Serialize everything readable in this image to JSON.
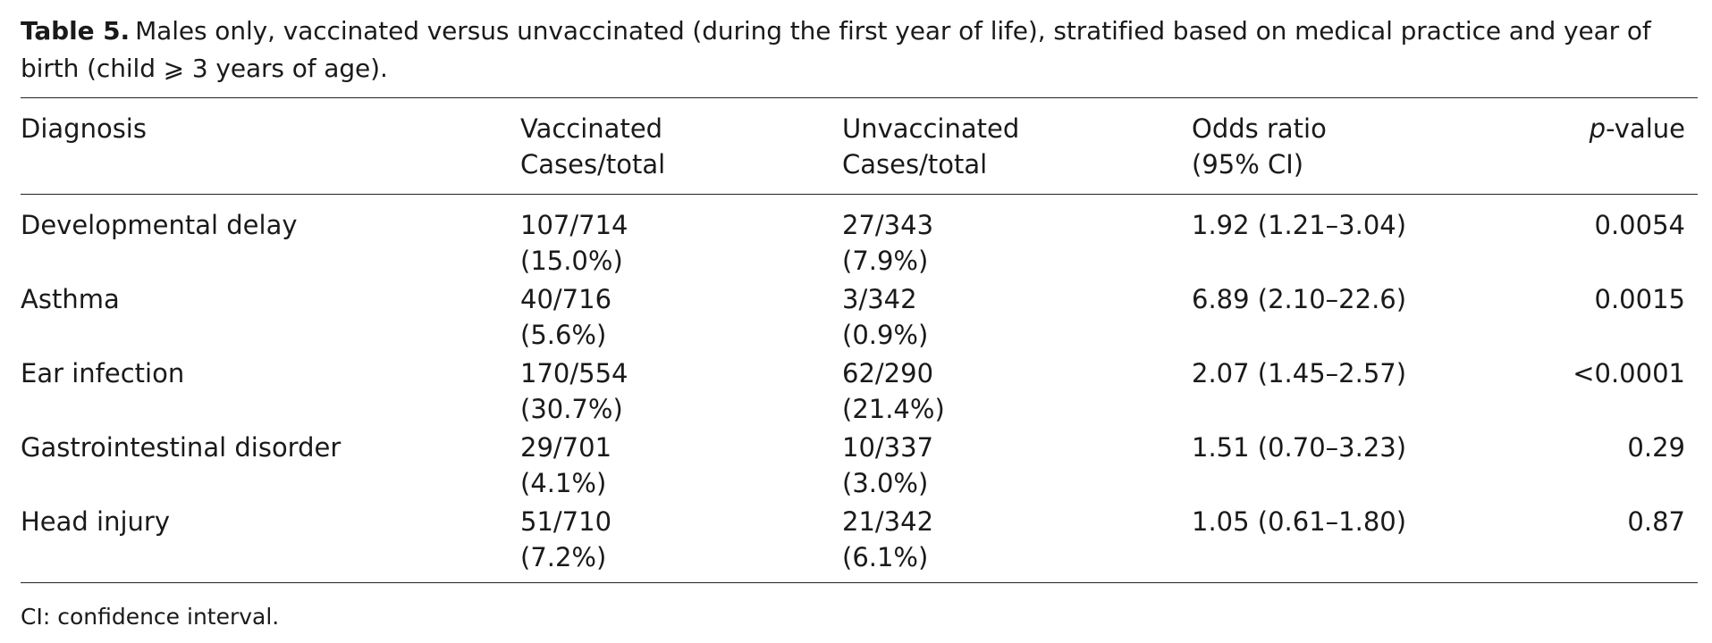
{
  "caption": {
    "label": "Table 5.",
    "text": "Males only, vaccinated versus unvaccinated (during the first year of life), stratified based on medical practice and year of birth (child ⩾ 3 years of age)."
  },
  "headers": {
    "diagnosis": "Diagnosis",
    "vaccinated_l1": "Vaccinated",
    "vaccinated_l2": "Cases/total",
    "unvaccinated_l1": "Unvaccinated",
    "unvaccinated_l2": "Cases/total",
    "odds_l1": "Odds ratio",
    "odds_l2": "(95% CI)",
    "p_italic": "p",
    "p_rest": "-value"
  },
  "rows": [
    {
      "diagnosis": "Developmental delay",
      "vacc": "107/714",
      "vacc_pct": "(15.0%)",
      "unvacc": "27/343",
      "unvacc_pct": "(7.9%)",
      "or": "1.92 (1.21–3.04)",
      "p": "0.0054"
    },
    {
      "diagnosis": "Asthma",
      "vacc": "40/716",
      "vacc_pct": "(5.6%)",
      "unvacc": "3/342",
      "unvacc_pct": "(0.9%)",
      "or": "6.89 (2.10–22.6)",
      "p": "0.0015"
    },
    {
      "diagnosis": "Ear infection",
      "vacc": "170/554",
      "vacc_pct": "(30.7%)",
      "unvacc": "62/290",
      "unvacc_pct": "(21.4%)",
      "or": "2.07 (1.45–2.57)",
      "p": "<0.0001"
    },
    {
      "diagnosis": "Gastrointestinal disorder",
      "vacc": "29/701",
      "vacc_pct": "(4.1%)",
      "unvacc": "10/337",
      "unvacc_pct": "(3.0%)",
      "or": "1.51 (0.70–3.23)",
      "p": "0.29"
    },
    {
      "diagnosis": "Head injury",
      "vacc": "51/710",
      "vacc_pct": "(7.2%)",
      "unvacc": "21/342",
      "unvacc_pct": "(6.1%)",
      "or": "1.05 (0.61–1.80)",
      "p": "0.87"
    }
  ],
  "footnote": "CI: confidence interval."
}
